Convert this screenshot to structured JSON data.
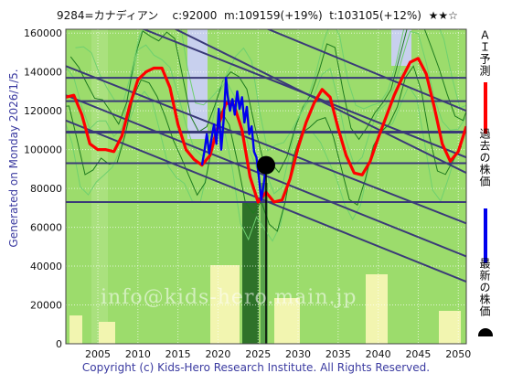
{
  "header": {
    "code_name": "9284=カナディアン",
    "close": "c:92000",
    "mid": "m:109159(+19%)",
    "target": "t:103105(+12%)",
    "stars": "★★☆"
  },
  "side_label": "Generated on Monday 2026/1/5.",
  "footer": "Copyright (c) Kids-Hero Research Institute. All Rights Reserved.",
  "watermark": "info@kids-hero.main.jp",
  "legend": [
    {
      "label": "ＡＩ予測",
      "color": "#ff0000"
    },
    {
      "label": "過去の株価",
      "color": "#0000ee"
    },
    {
      "label": "最新の株価",
      "color": "#000000"
    }
  ],
  "colors": {
    "plot_bg": "#9cdc6c",
    "band_light": "#f2f5b0",
    "band_blue": "#c8d0ee",
    "grid_line": "#3a3a78"
  },
  "chart_data": {
    "type": "line",
    "xlim": [
      2001,
      2051
    ],
    "ylim": [
      0,
      162000
    ],
    "x_ticks": [
      2005,
      2010,
      2015,
      2020,
      2025,
      2030,
      2035,
      2040,
      2045,
      2050
    ],
    "y_ticks": [
      0,
      20000,
      40000,
      60000,
      80000,
      100000,
      120000,
      140000,
      160000
    ],
    "horizontal_levels": [
      137000,
      125000,
      109000,
      93000,
      73000
    ],
    "trend_lines": [
      {
        "x": [
          2001,
          2051
        ],
        "y": [
          190000,
          88000
        ]
      },
      {
        "x": [
          2001,
          2051
        ],
        "y": [
          143000,
          62000
        ]
      },
      {
        "x": [
          2001,
          2051
        ],
        "y": [
          115000,
          32000
        ]
      },
      {
        "x": [
          2001,
          2051
        ],
        "y": [
          178000,
          96000
        ]
      },
      {
        "x": [
          2001,
          2051
        ],
        "y": [
          128000,
          45000
        ]
      },
      {
        "x": [
          2001,
          2051
        ],
        "y": [
          205000,
          120000
        ]
      }
    ],
    "series": [
      {
        "name": "ＡＩ予測",
        "color": "#ff0000",
        "x": [
          2001,
          2002,
          2003,
          2004,
          2005,
          2006,
          2007,
          2008,
          2009,
          2010,
          2011,
          2012,
          2013,
          2014,
          2015,
          2016,
          2017,
          2018,
          2019,
          2020,
          2021,
          2022,
          2023,
          2024,
          2025,
          2026,
          2027,
          2028,
          2029,
          2030,
          2031,
          2032,
          2033,
          2034,
          2035,
          2036,
          2037,
          2038,
          2039,
          2040,
          2041,
          2042,
          2043,
          2044,
          2045,
          2046,
          2047,
          2048,
          2049,
          2050,
          2051
        ],
        "y": [
          127000,
          128000,
          118000,
          103000,
          100000,
          100000,
          99000,
          107000,
          123000,
          136000,
          140000,
          142000,
          142000,
          132000,
          113000,
          100000,
          95000,
          92000,
          97000,
          112000,
          124000,
          123000,
          110000,
          86000,
          73000,
          78000,
          73000,
          74000,
          85000,
          101000,
          114000,
          124000,
          131000,
          127000,
          111000,
          97000,
          88000,
          87000,
          94000,
          106000,
          117000,
          128000,
          137000,
          145000,
          147000,
          139000,
          122000,
          103000,
          94000,
          99000,
          112000
        ]
      },
      {
        "name": "過去の株価",
        "color": "#0000ee",
        "x": [
          2018.0,
          2018.3,
          2018.6,
          2018.9,
          2019.2,
          2019.5,
          2019.8,
          2020.1,
          2020.4,
          2020.7,
          2021.0,
          2021.2,
          2021.5,
          2021.8,
          2022.1,
          2022.4,
          2022.7,
          2023.0,
          2023.3,
          2023.6,
          2023.9,
          2024.2,
          2024.5,
          2024.8,
          2025.1,
          2025.4,
          2025.7,
          2026.0
        ],
        "y": [
          92000,
          99000,
          108000,
          98000,
          106000,
          113000,
          103000,
          121000,
          100000,
          115000,
          137000,
          128000,
          120000,
          126000,
          118000,
          130000,
          121000,
          127000,
          114000,
          122000,
          108000,
          112000,
          99000,
          96000,
          86000,
          74000,
          82000,
          92000
        ]
      }
    ],
    "latest": {
      "x": 2026,
      "y": 92000
    }
  }
}
